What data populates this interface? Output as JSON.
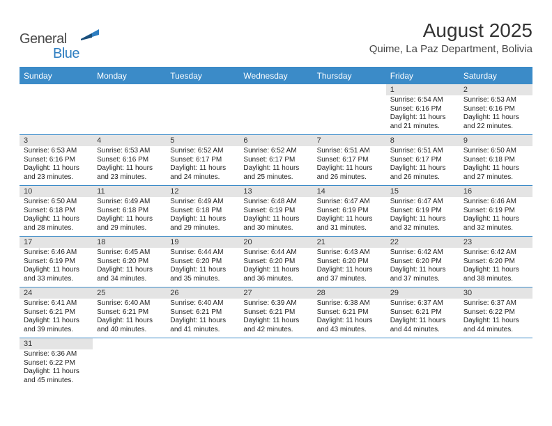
{
  "logo": {
    "text1": "General",
    "text2": "Blue"
  },
  "title": "August 2025",
  "location": "Quime, La Paz Department, Bolivia",
  "colors": {
    "header_bg": "#3b8bc8",
    "daynum_bg": "#e4e4e4",
    "row_border": "#3b8bc8"
  },
  "day_headers": [
    "Sunday",
    "Monday",
    "Tuesday",
    "Wednesday",
    "Thursday",
    "Friday",
    "Saturday"
  ],
  "weeks": [
    [
      {
        "n": "",
        "sr": "",
        "ss": "",
        "dl": ""
      },
      {
        "n": "",
        "sr": "",
        "ss": "",
        "dl": ""
      },
      {
        "n": "",
        "sr": "",
        "ss": "",
        "dl": ""
      },
      {
        "n": "",
        "sr": "",
        "ss": "",
        "dl": ""
      },
      {
        "n": "",
        "sr": "",
        "ss": "",
        "dl": ""
      },
      {
        "n": "1",
        "sr": "Sunrise: 6:54 AM",
        "ss": "Sunset: 6:16 PM",
        "dl": "Daylight: 11 hours and 21 minutes."
      },
      {
        "n": "2",
        "sr": "Sunrise: 6:53 AM",
        "ss": "Sunset: 6:16 PM",
        "dl": "Daylight: 11 hours and 22 minutes."
      }
    ],
    [
      {
        "n": "3",
        "sr": "Sunrise: 6:53 AM",
        "ss": "Sunset: 6:16 PM",
        "dl": "Daylight: 11 hours and 23 minutes."
      },
      {
        "n": "4",
        "sr": "Sunrise: 6:53 AM",
        "ss": "Sunset: 6:16 PM",
        "dl": "Daylight: 11 hours and 23 minutes."
      },
      {
        "n": "5",
        "sr": "Sunrise: 6:52 AM",
        "ss": "Sunset: 6:17 PM",
        "dl": "Daylight: 11 hours and 24 minutes."
      },
      {
        "n": "6",
        "sr": "Sunrise: 6:52 AM",
        "ss": "Sunset: 6:17 PM",
        "dl": "Daylight: 11 hours and 25 minutes."
      },
      {
        "n": "7",
        "sr": "Sunrise: 6:51 AM",
        "ss": "Sunset: 6:17 PM",
        "dl": "Daylight: 11 hours and 26 minutes."
      },
      {
        "n": "8",
        "sr": "Sunrise: 6:51 AM",
        "ss": "Sunset: 6:17 PM",
        "dl": "Daylight: 11 hours and 26 minutes."
      },
      {
        "n": "9",
        "sr": "Sunrise: 6:50 AM",
        "ss": "Sunset: 6:18 PM",
        "dl": "Daylight: 11 hours and 27 minutes."
      }
    ],
    [
      {
        "n": "10",
        "sr": "Sunrise: 6:50 AM",
        "ss": "Sunset: 6:18 PM",
        "dl": "Daylight: 11 hours and 28 minutes."
      },
      {
        "n": "11",
        "sr": "Sunrise: 6:49 AM",
        "ss": "Sunset: 6:18 PM",
        "dl": "Daylight: 11 hours and 29 minutes."
      },
      {
        "n": "12",
        "sr": "Sunrise: 6:49 AM",
        "ss": "Sunset: 6:18 PM",
        "dl": "Daylight: 11 hours and 29 minutes."
      },
      {
        "n": "13",
        "sr": "Sunrise: 6:48 AM",
        "ss": "Sunset: 6:19 PM",
        "dl": "Daylight: 11 hours and 30 minutes."
      },
      {
        "n": "14",
        "sr": "Sunrise: 6:47 AM",
        "ss": "Sunset: 6:19 PM",
        "dl": "Daylight: 11 hours and 31 minutes."
      },
      {
        "n": "15",
        "sr": "Sunrise: 6:47 AM",
        "ss": "Sunset: 6:19 PM",
        "dl": "Daylight: 11 hours and 32 minutes."
      },
      {
        "n": "16",
        "sr": "Sunrise: 6:46 AM",
        "ss": "Sunset: 6:19 PM",
        "dl": "Daylight: 11 hours and 32 minutes."
      }
    ],
    [
      {
        "n": "17",
        "sr": "Sunrise: 6:46 AM",
        "ss": "Sunset: 6:19 PM",
        "dl": "Daylight: 11 hours and 33 minutes."
      },
      {
        "n": "18",
        "sr": "Sunrise: 6:45 AM",
        "ss": "Sunset: 6:20 PM",
        "dl": "Daylight: 11 hours and 34 minutes."
      },
      {
        "n": "19",
        "sr": "Sunrise: 6:44 AM",
        "ss": "Sunset: 6:20 PM",
        "dl": "Daylight: 11 hours and 35 minutes."
      },
      {
        "n": "20",
        "sr": "Sunrise: 6:44 AM",
        "ss": "Sunset: 6:20 PM",
        "dl": "Daylight: 11 hours and 36 minutes."
      },
      {
        "n": "21",
        "sr": "Sunrise: 6:43 AM",
        "ss": "Sunset: 6:20 PM",
        "dl": "Daylight: 11 hours and 37 minutes."
      },
      {
        "n": "22",
        "sr": "Sunrise: 6:42 AM",
        "ss": "Sunset: 6:20 PM",
        "dl": "Daylight: 11 hours and 37 minutes."
      },
      {
        "n": "23",
        "sr": "Sunrise: 6:42 AM",
        "ss": "Sunset: 6:20 PM",
        "dl": "Daylight: 11 hours and 38 minutes."
      }
    ],
    [
      {
        "n": "24",
        "sr": "Sunrise: 6:41 AM",
        "ss": "Sunset: 6:21 PM",
        "dl": "Daylight: 11 hours and 39 minutes."
      },
      {
        "n": "25",
        "sr": "Sunrise: 6:40 AM",
        "ss": "Sunset: 6:21 PM",
        "dl": "Daylight: 11 hours and 40 minutes."
      },
      {
        "n": "26",
        "sr": "Sunrise: 6:40 AM",
        "ss": "Sunset: 6:21 PM",
        "dl": "Daylight: 11 hours and 41 minutes."
      },
      {
        "n": "27",
        "sr": "Sunrise: 6:39 AM",
        "ss": "Sunset: 6:21 PM",
        "dl": "Daylight: 11 hours and 42 minutes."
      },
      {
        "n": "28",
        "sr": "Sunrise: 6:38 AM",
        "ss": "Sunset: 6:21 PM",
        "dl": "Daylight: 11 hours and 43 minutes."
      },
      {
        "n": "29",
        "sr": "Sunrise: 6:37 AM",
        "ss": "Sunset: 6:21 PM",
        "dl": "Daylight: 11 hours and 44 minutes."
      },
      {
        "n": "30",
        "sr": "Sunrise: 6:37 AM",
        "ss": "Sunset: 6:22 PM",
        "dl": "Daylight: 11 hours and 44 minutes."
      }
    ],
    [
      {
        "n": "31",
        "sr": "Sunrise: 6:36 AM",
        "ss": "Sunset: 6:22 PM",
        "dl": "Daylight: 11 hours and 45 minutes."
      },
      {
        "n": "",
        "sr": "",
        "ss": "",
        "dl": ""
      },
      {
        "n": "",
        "sr": "",
        "ss": "",
        "dl": ""
      },
      {
        "n": "",
        "sr": "",
        "ss": "",
        "dl": ""
      },
      {
        "n": "",
        "sr": "",
        "ss": "",
        "dl": ""
      },
      {
        "n": "",
        "sr": "",
        "ss": "",
        "dl": ""
      },
      {
        "n": "",
        "sr": "",
        "ss": "",
        "dl": ""
      }
    ]
  ]
}
